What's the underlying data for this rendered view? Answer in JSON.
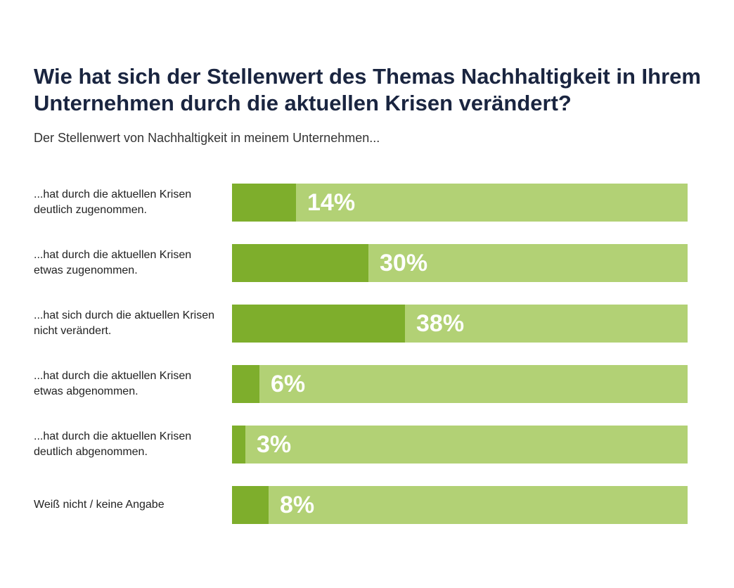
{
  "title": "Wie hat sich der Stellenwert des Themas Nachhaltigkeit in Ihrem Unternehmen durch die aktuellen Krisen verändert?",
  "subtitle": "Der Stellenwert von Nachhaltigkeit in meinem Unternehmen...",
  "colors": {
    "fill": "#7eae2c",
    "background": "#b2d175",
    "title": "#1a2540"
  },
  "chart_data": {
    "type": "bar",
    "orientation": "horizontal",
    "categories": [
      "...hat durch die aktuellen Krisen deutlich zugenommen.",
      "...hat durch die aktuellen Krisen etwas zugenommen.",
      "...hat sich durch die aktuellen Krisen nicht verändert.",
      "...hat durch die aktuellen Krisen etwas abgenommen.",
      "...hat durch die aktuellen Krisen deutlich abgenommen.",
      "Weiß nicht / keine Angabe"
    ],
    "values": [
      14,
      30,
      38,
      6,
      3,
      8
    ],
    "value_labels": [
      "14%",
      "30%",
      "38%",
      "6%",
      "3%",
      "8%"
    ],
    "xlim": [
      0,
      100
    ],
    "grid": false,
    "legend": "none"
  }
}
